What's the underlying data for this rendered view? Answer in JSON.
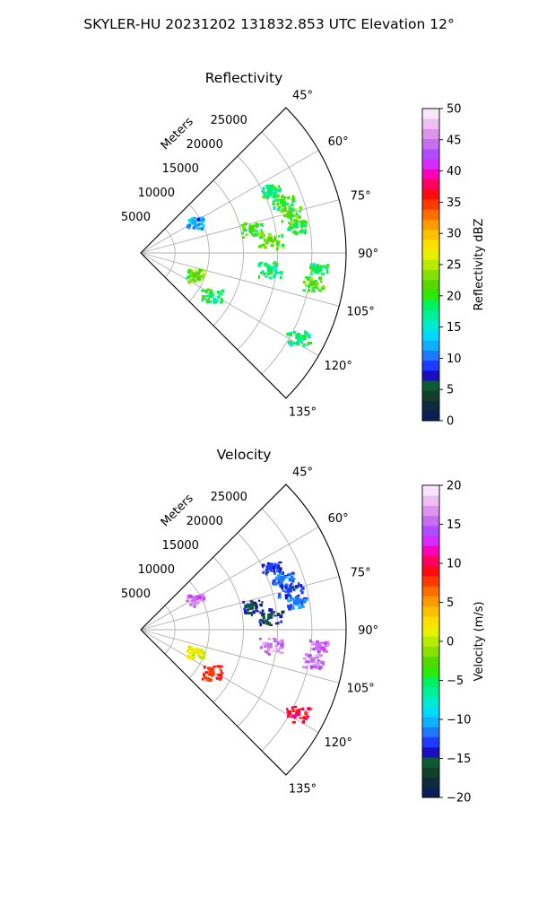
{
  "figure": {
    "suptitle": "SKYLER-HU  20231202  131832.853 UTC Elevation 12°"
  },
  "chart_data": [
    {
      "type": "heatmap",
      "projection": "polar-sector",
      "title": "Reflectivity",
      "range_label": "Meters",
      "range_ticks": [
        5000,
        10000,
        15000,
        20000,
        25000
      ],
      "range_tick_labels": [
        "5000",
        "10000",
        "15000",
        "20000",
        "25000"
      ],
      "range_max_m": 30000,
      "angle_ticks_deg": [
        45,
        60,
        75,
        90,
        105,
        120,
        135
      ],
      "angle_tick_labels": [
        "45°",
        "60°",
        "75°",
        "90°",
        "105°",
        "120°",
        "135°"
      ],
      "grid": true,
      "colorbar": {
        "label": "Reflectivity dBZ",
        "vmin": 0,
        "vmax": 50,
        "ticks": [
          0,
          5,
          10,
          15,
          20,
          25,
          30,
          35,
          40,
          45,
          50
        ],
        "tick_labels": [
          "0",
          "5",
          "10",
          "15",
          "20",
          "25",
          "30",
          "35",
          "40",
          "45",
          "50"
        ],
        "colors": [
          "#0a1f55",
          "#0f2a3a",
          "#123f2c",
          "#0e5a34",
          "#1a0fbf",
          "#1d3cff",
          "#1e78ff",
          "#10b0ff",
          "#00d8ff",
          "#00eacf",
          "#00f09a",
          "#00f060",
          "#2ee80a",
          "#55d800",
          "#86e000",
          "#b6ea00",
          "#e8f000",
          "#ffe000",
          "#ffc000",
          "#ff9a00",
          "#ff6d00",
          "#ff3a00",
          "#ff0a10",
          "#ff0060",
          "#ff00b8",
          "#d42cff",
          "#b24cff",
          "#c86ef0",
          "#dc94ec",
          "#ecc0f2",
          "#f8e6fa"
        ]
      },
      "echoes": [
        {
          "azimuth_deg": 64,
          "range_m": 21000,
          "value": 18
        },
        {
          "azimuth_deg": 70,
          "range_m": 22000,
          "value": 20
        },
        {
          "azimuth_deg": 75,
          "range_m": 22500,
          "value": 21
        },
        {
          "azimuth_deg": 80,
          "range_m": 23000,
          "value": 19
        },
        {
          "azimuth_deg": 78,
          "range_m": 16500,
          "value": 20
        },
        {
          "azimuth_deg": 84,
          "range_m": 19000,
          "value": 22
        },
        {
          "azimuth_deg": 95,
          "range_m": 26000,
          "value": 19
        },
        {
          "azimuth_deg": 100,
          "range_m": 25500,
          "value": 21
        },
        {
          "azimuth_deg": 97,
          "range_m": 19000,
          "value": 18
        },
        {
          "azimuth_deg": 112,
          "range_m": 8500,
          "value": 22
        },
        {
          "azimuth_deg": 121,
          "range_m": 12000,
          "value": 18
        },
        {
          "azimuth_deg": 118,
          "range_m": 26000,
          "value": 19
        },
        {
          "azimuth_deg": 60,
          "range_m": 9000,
          "value": 12
        }
      ]
    },
    {
      "type": "heatmap",
      "projection": "polar-sector",
      "title": "Velocity",
      "range_label": "Meters",
      "range_ticks": [
        5000,
        10000,
        15000,
        20000,
        25000
      ],
      "range_tick_labels": [
        "5000",
        "10000",
        "15000",
        "20000",
        "25000"
      ],
      "range_max_m": 30000,
      "angle_ticks_deg": [
        45,
        60,
        75,
        90,
        105,
        120,
        135
      ],
      "angle_tick_labels": [
        "45°",
        "60°",
        "75°",
        "90°",
        "105°",
        "120°",
        "135°"
      ],
      "grid": true,
      "colorbar": {
        "label": "Velocity (m/s)",
        "vmin": -20,
        "vmax": 20,
        "ticks": [
          -20,
          -15,
          -10,
          -5,
          0,
          5,
          10,
          15,
          20
        ],
        "tick_labels": [
          "−20",
          "−15",
          "−10",
          "−5",
          "0",
          "5",
          "10",
          "15",
          "20"
        ],
        "colors": [
          "#0a1f55",
          "#0f2a3a",
          "#123f2c",
          "#0e5a34",
          "#1a0fbf",
          "#1d3cff",
          "#1e78ff",
          "#10b0ff",
          "#00d8ff",
          "#00eacf",
          "#00f09a",
          "#00f060",
          "#2ee80a",
          "#55d800",
          "#86e000",
          "#b6ea00",
          "#e8f000",
          "#ffe000",
          "#ffc000",
          "#ff9a00",
          "#ff6d00",
          "#ff3a00",
          "#ff0a10",
          "#ff0060",
          "#ff00b8",
          "#d42cff",
          "#b24cff",
          "#c86ef0",
          "#dc94ec",
          "#ecc0f2",
          "#f8e6fa"
        ]
      },
      "echoes": [
        {
          "azimuth_deg": 64,
          "range_m": 21000,
          "value": -13
        },
        {
          "azimuth_deg": 70,
          "range_m": 22000,
          "value": -12
        },
        {
          "azimuth_deg": 75,
          "range_m": 22500,
          "value": -13
        },
        {
          "azimuth_deg": 80,
          "range_m": 23000,
          "value": -12
        },
        {
          "azimuth_deg": 78,
          "range_m": 16500,
          "value": -15
        },
        {
          "azimuth_deg": 84,
          "range_m": 19000,
          "value": -15
        },
        {
          "azimuth_deg": 95,
          "range_m": 26000,
          "value": 15
        },
        {
          "azimuth_deg": 100,
          "range_m": 25500,
          "value": 16
        },
        {
          "azimuth_deg": 97,
          "range_m": 19000,
          "value": 16
        },
        {
          "azimuth_deg": 112,
          "range_m": 8500,
          "value": 1
        },
        {
          "azimuth_deg": 121,
          "range_m": 12000,
          "value": 8
        },
        {
          "azimuth_deg": 118,
          "range_m": 26000,
          "value": 10
        },
        {
          "azimuth_deg": 60,
          "range_m": 9000,
          "value": 15
        }
      ]
    }
  ]
}
